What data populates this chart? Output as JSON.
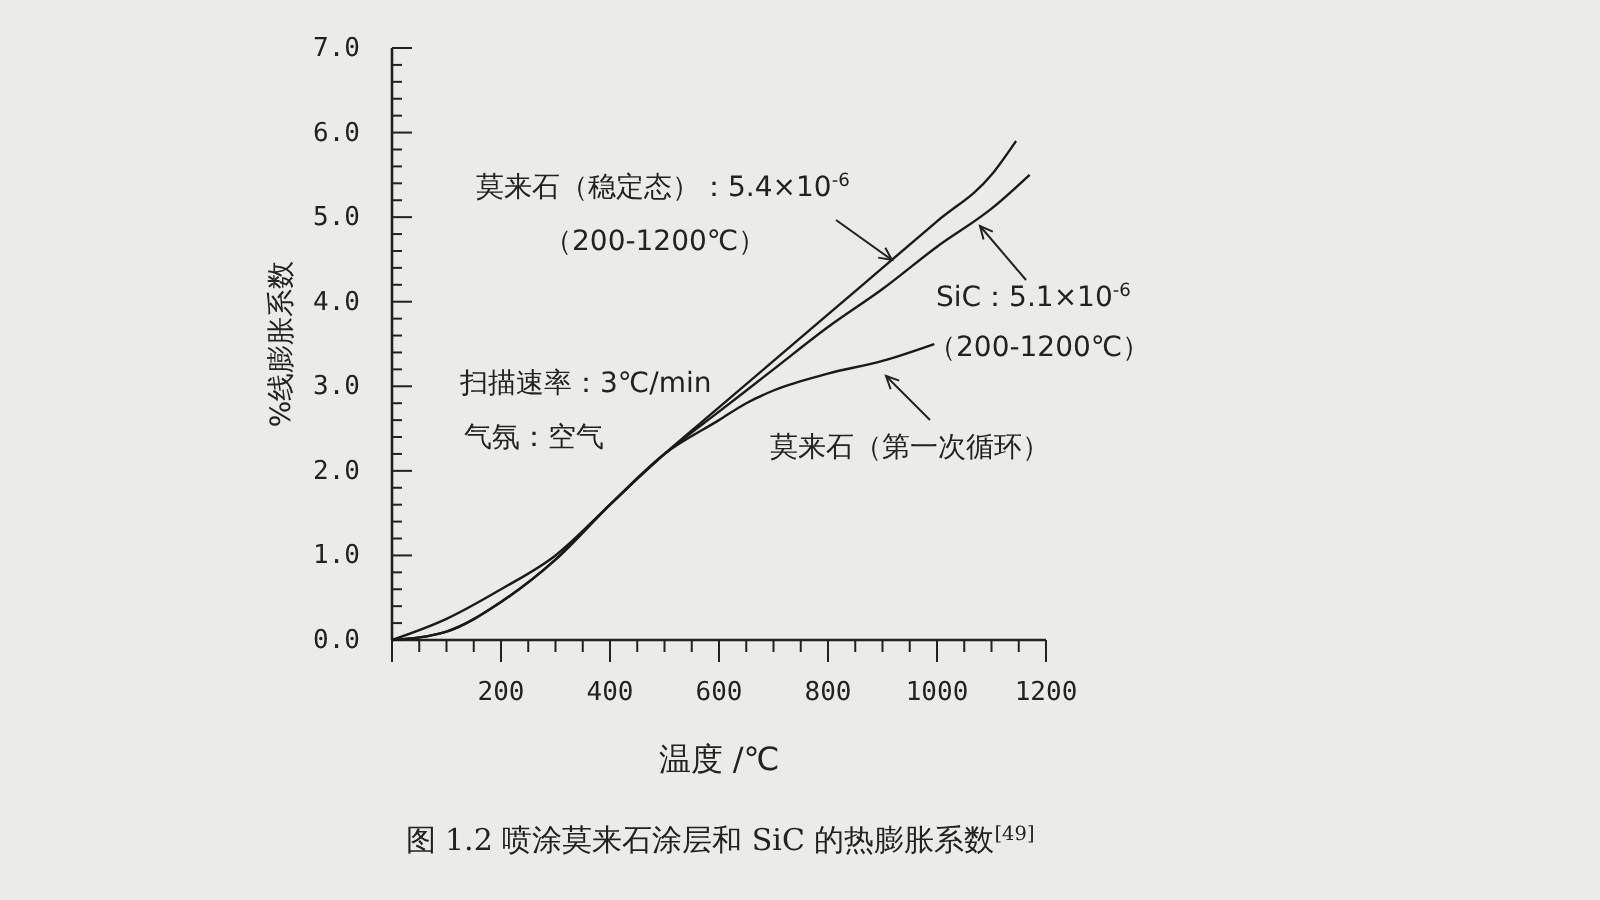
{
  "chart_data": {
    "type": "line",
    "title": "图 1.2 喷涂莫来石涂层和 SiC 的热膨胀系数$^{[49]}$",
    "xlabel": "温度 /℃",
    "ylabel": "%线膨胀系数",
    "xlim": [
      0,
      1200
    ],
    "ylim": [
      0,
      7
    ],
    "xticks": [
      {
        "value": 0,
        "label": null
      },
      {
        "value": 50,
        "label": null
      },
      {
        "value": 100,
        "label": null
      },
      {
        "value": 150,
        "label": null
      },
      200,
      {
        "value": 250,
        "label": null
      },
      {
        "value": 300,
        "label": null
      },
      {
        "value": 350,
        "label": null
      },
      400,
      {
        "value": 450,
        "label": null
      },
      {
        "value": 500,
        "label": null
      },
      {
        "value": 550,
        "label": null
      },
      600,
      {
        "value": 650,
        "label": null
      },
      {
        "value": 700,
        "label": null
      },
      {
        "value": 750,
        "label": null
      },
      800,
      {
        "value": 850,
        "label": null
      },
      {
        "value": 900,
        "label": null
      },
      {
        "value": 950,
        "label": null
      },
      1000,
      {
        "value": 1050,
        "label": null
      },
      {
        "value": 1100,
        "label": null
      },
      {
        "value": 1150,
        "label": null
      },
      1200
    ],
    "yticks": [
      {
        "value": 0,
        "label": "0.0"
      },
      {
        "value": 0.2,
        "label": null
      },
      {
        "value": 0.4,
        "label": null
      },
      {
        "value": 0.6,
        "label": null
      },
      {
        "value": 0.8,
        "label": null
      },
      {
        "value": 1,
        "label": "1.0"
      },
      {
        "value": 1.2,
        "label": null
      },
      {
        "value": 1.4,
        "label": null
      },
      {
        "value": 1.6,
        "label": null
      },
      {
        "value": 1.8,
        "label": null
      },
      {
        "value": 2,
        "label": "2.0"
      },
      {
        "value": 2.2,
        "label": null
      },
      {
        "value": 2.4,
        "label": null
      },
      {
        "value": 2.6,
        "label": null
      },
      {
        "value": 2.8,
        "label": null
      },
      {
        "value": 3,
        "label": "3.0"
      },
      {
        "value": 3.2,
        "label": null
      },
      {
        "value": 3.4,
        "label": null
      },
      {
        "value": 3.6,
        "label": null
      },
      {
        "value": 3.8,
        "label": null
      },
      {
        "value": 4,
        "label": "4.0"
      },
      {
        "value": 4.2,
        "label": null
      },
      {
        "value": 4.4,
        "label": null
      },
      {
        "value": 4.6,
        "label": null
      },
      {
        "value": 4.8,
        "label": null
      },
      {
        "value": 5,
        "label": "5.0"
      },
      {
        "value": 5.2,
        "label": null
      },
      {
        "value": 5.4,
        "label": null
      },
      {
        "value": 5.6,
        "label": null
      },
      {
        "value": 5.8,
        "label": null
      },
      {
        "value": 6,
        "label": "6.0"
      },
      {
        "value": 6.2,
        "label": null
      },
      {
        "value": 6.4,
        "label": null
      },
      {
        "value": 6.6,
        "label": null
      },
      {
        "value": 6.8,
        "label": null
      },
      {
        "value": 7,
        "label": "7.0"
      }
    ],
    "marker": "none",
    "line_style": "solid",
    "series": [
      {
        "color": "#1a1a1a",
        "x": [
          0,
          100,
          200,
          300,
          400,
          500,
          600,
          700,
          800,
          900,
          1000,
          1100,
          1145
        ],
        "values": [
          0,
          0.1,
          0.45,
          0.95,
          1.6,
          2.2,
          2.75,
          3.3,
          3.85,
          4.4,
          4.95,
          5.5,
          5.9
        ]
      },
      {
        "color": "#1a1a1a",
        "x": [
          0,
          100,
          200,
          300,
          400,
          500,
          600,
          700,
          800,
          900,
          1000,
          1100,
          1170
        ],
        "values": [
          0,
          0.25,
          0.6,
          1.0,
          1.6,
          2.2,
          2.7,
          3.2,
          3.7,
          4.15,
          4.65,
          5.1,
          5.5
        ]
      },
      {
        "color": "#1a1a1a",
        "x": [
          0,
          100,
          200,
          300,
          400,
          500,
          600,
          650,
          700,
          800,
          900,
          995
        ],
        "values": [
          0,
          0.1,
          0.45,
          0.95,
          1.6,
          2.2,
          2.6,
          2.8,
          2.95,
          3.15,
          3.3,
          3.5
        ]
      }
    ],
    "annotations": [
      "莫来石（稳定态）：5.4×10$^{-6}$",
      "（200-1200℃）",
      "SiC：5.1×10$^{-6}$",
      "（200-1200℃）",
      "莫来石（第一次循环）",
      "扫描速率：3℃/min",
      "气氛：空气"
    ]
  }
}
